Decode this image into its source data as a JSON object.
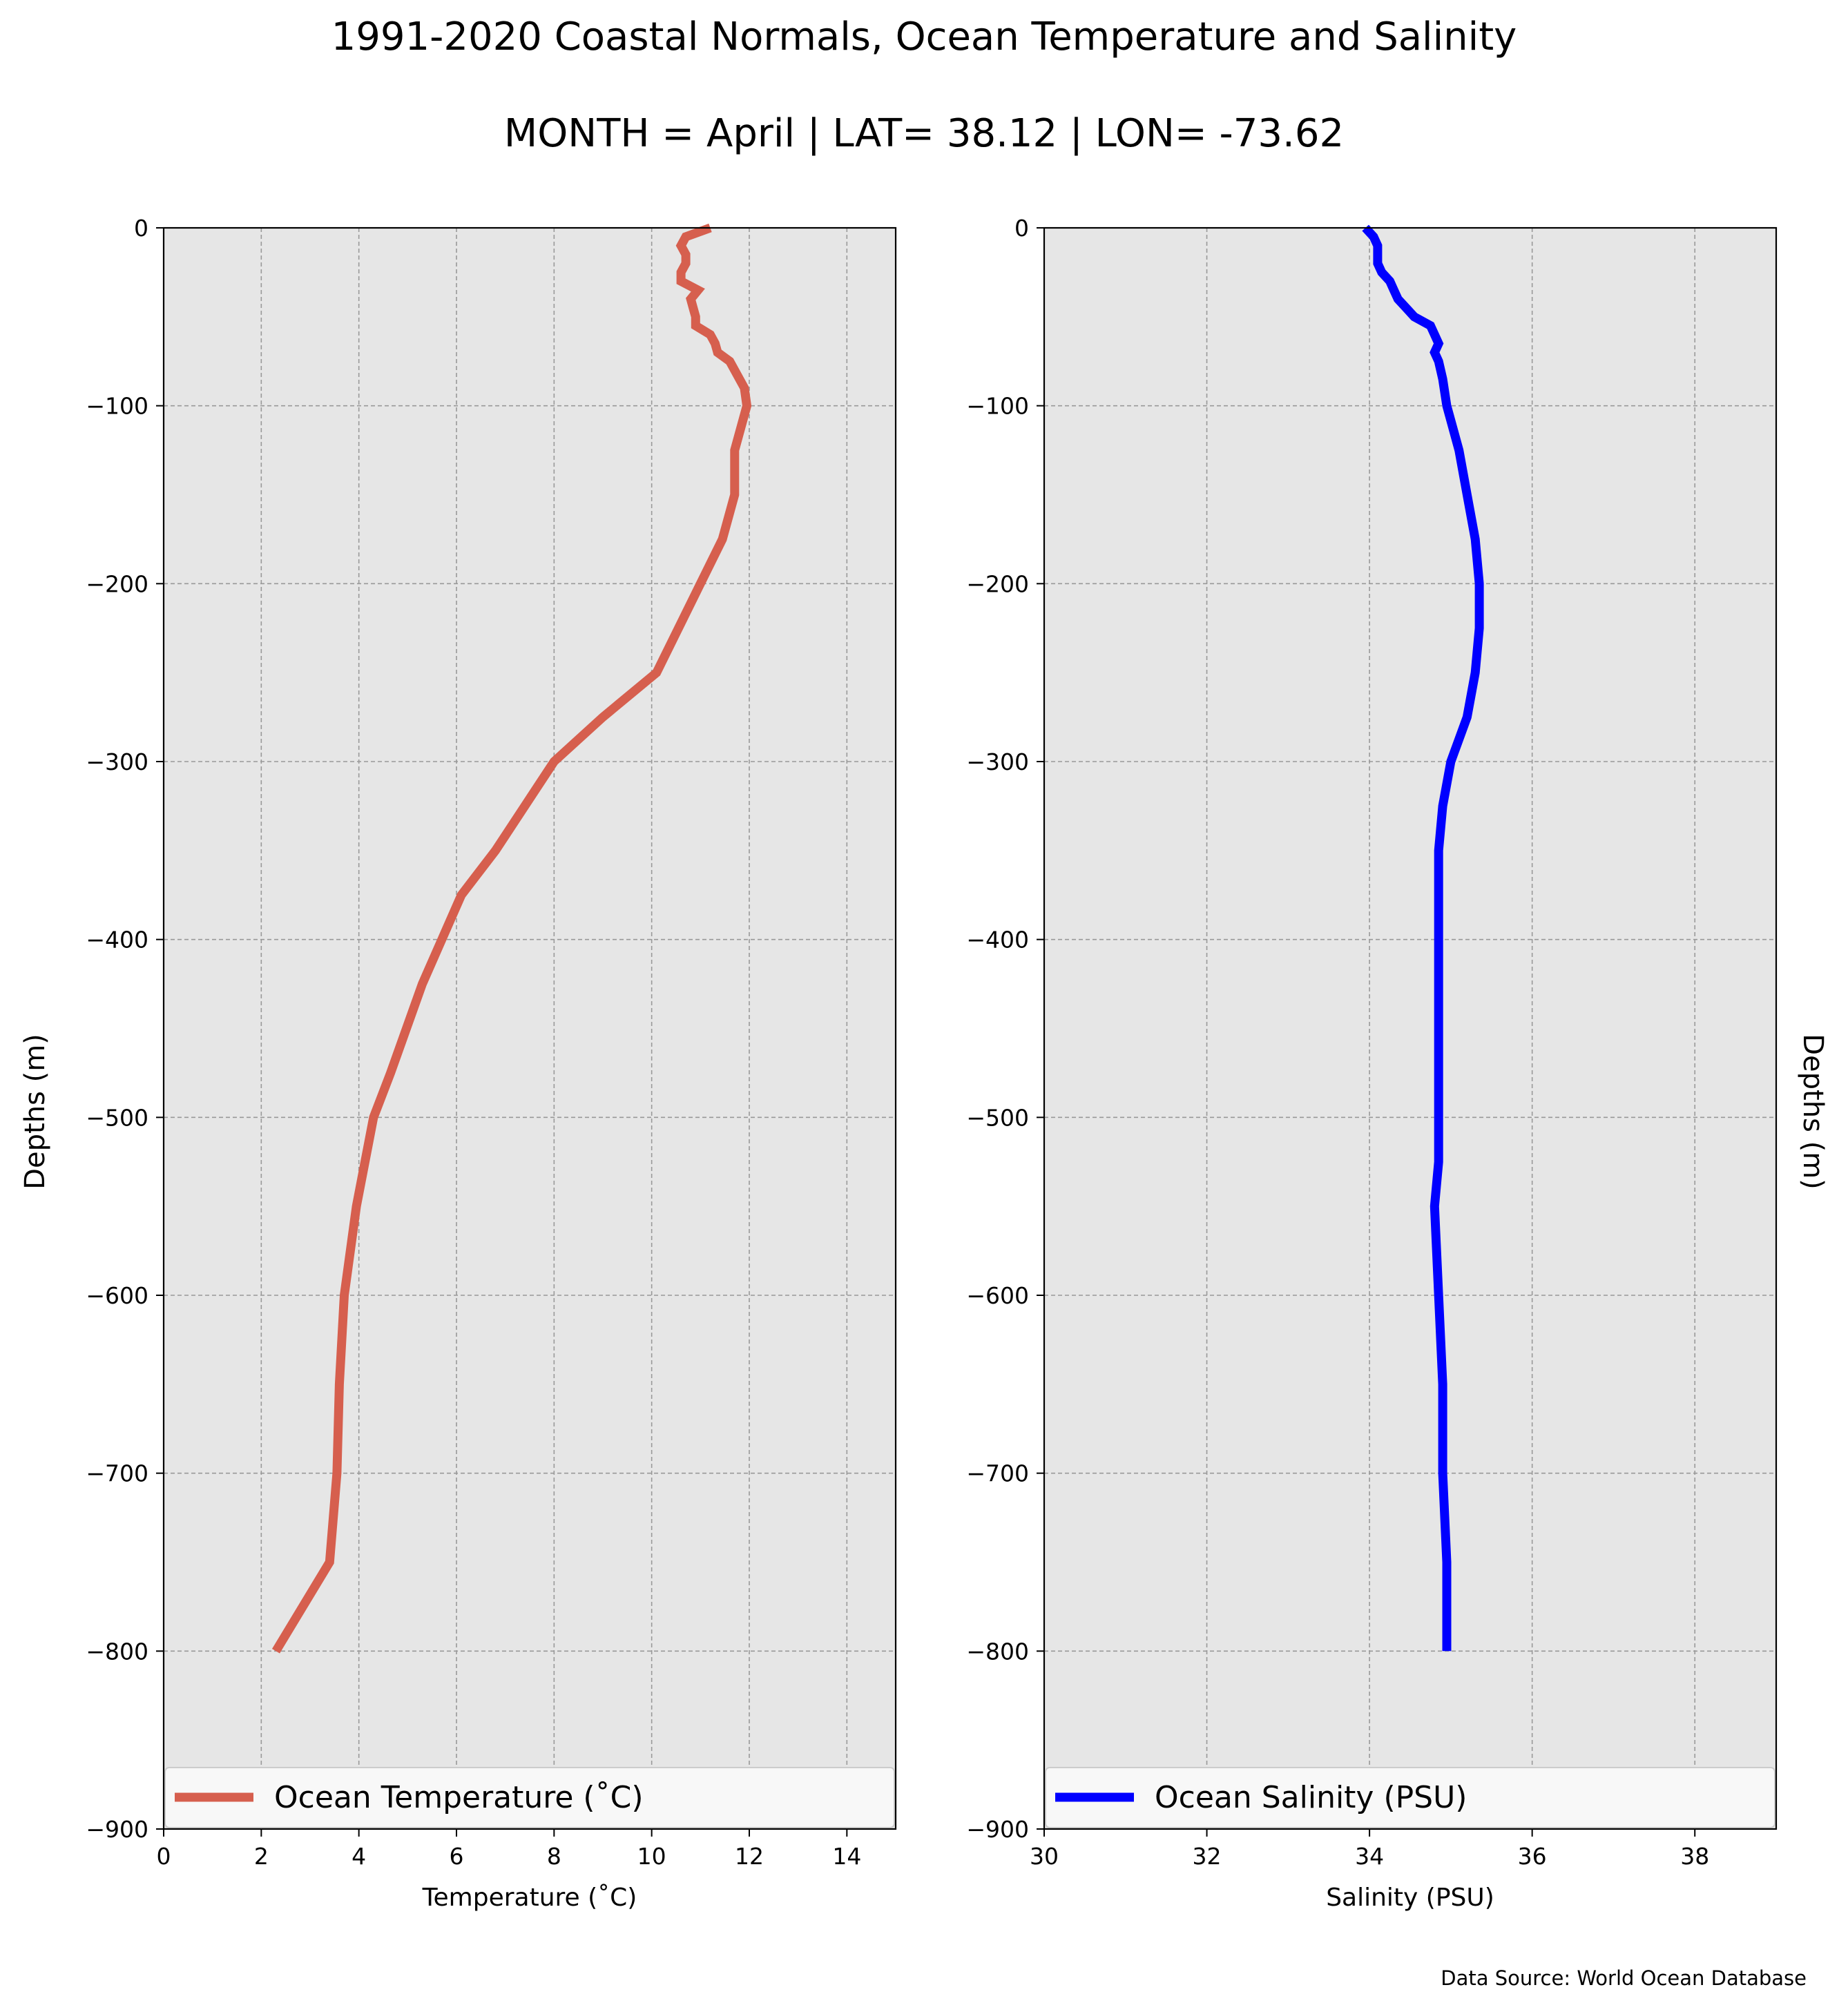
{
  "figure": {
    "title": "1991-2020 Coastal Normals, Ocean Temperature and Salinity",
    "subtitle": "MONTH = April | LAT= 38.12 | LON= -73.62",
    "source": "Data Source: World Ocean Database",
    "colors": {
      "panel_bg": "#e6e6e6",
      "grid": "#999999"
    }
  },
  "chart_data": [
    {
      "type": "line",
      "xlabel": "Temperature ($^\\circ$C)",
      "xlabel_display": "Temperature (˚C)",
      "ylabel": "Depths (m)",
      "xlim": [
        0,
        15
      ],
      "ylim": [
        -900,
        0
      ],
      "xticks": [
        0,
        2,
        4,
        6,
        8,
        10,
        12,
        14
      ],
      "yticks": [
        0,
        -100,
        -200,
        -300,
        -400,
        -500,
        -600,
        -700,
        -800,
        -900
      ],
      "grid": true,
      "legend_position": "lower-left (full width)",
      "series": [
        {
          "name": "Ocean Temperature (˚C)",
          "color": "#d65f4e",
          "x": [
            11.2,
            10.7,
            10.6,
            10.7,
            10.7,
            10.6,
            10.6,
            10.95,
            10.8,
            10.85,
            10.9,
            10.9,
            11.2,
            11.3,
            11.35,
            11.6,
            11.9,
            11.95,
            11.7,
            11.7,
            11.7,
            11.45,
            11.0,
            10.1,
            9.0,
            8.0,
            7.4,
            6.8,
            6.1,
            5.3,
            4.65,
            4.3,
            3.95,
            3.7,
            3.6,
            3.55,
            3.55,
            3.4,
            2.3
          ],
          "y": [
            0,
            -5,
            -10,
            -15,
            -20,
            -25,
            -30,
            -35,
            -40,
            -45,
            -50,
            -55,
            -60,
            -65,
            -70,
            -75,
            -90,
            -100,
            -125,
            -150,
            -150,
            -175,
            -200,
            -250,
            -275,
            -300,
            -325,
            -350,
            -375,
            -425,
            -475,
            -500,
            -550,
            -600,
            -650,
            -700,
            -700,
            -750,
            -800
          ]
        }
      ]
    },
    {
      "type": "line",
      "xlabel": "Salinity (PSU)",
      "ylabel": "Depths (m)",
      "xlim": [
        30,
        39
      ],
      "ylim": [
        -900,
        0
      ],
      "xticks": [
        30,
        32,
        34,
        36,
        38
      ],
      "yticks": [
        0,
        -100,
        -200,
        -300,
        -400,
        -500,
        -600,
        -700,
        -800,
        -900
      ],
      "grid": true,
      "legend_position": "lower-left (full width)",
      "series": [
        {
          "name": "Ocean Salinity (PSU)",
          "color": "#0000ff",
          "x": [
            33.95,
            34.05,
            34.1,
            34.1,
            34.1,
            34.15,
            34.25,
            34.3,
            34.35,
            34.45,
            34.55,
            34.75,
            34.8,
            34.85,
            34.8,
            34.85,
            34.9,
            34.95,
            35.1,
            35.2,
            35.3,
            35.35,
            35.35,
            35.3,
            35.2,
            35.0,
            34.9,
            34.85,
            34.85,
            34.85,
            34.85,
            34.85,
            34.85,
            34.85,
            34.8,
            34.85,
            34.9,
            34.9,
            34.95,
            34.95
          ],
          "y": [
            0,
            -5,
            -10,
            -15,
            -20,
            -25,
            -30,
            -35,
            -40,
            -45,
            -50,
            -55,
            -60,
            -65,
            -70,
            -75,
            -85,
            -100,
            -125,
            -150,
            -175,
            -200,
            -225,
            -250,
            -275,
            -300,
            -325,
            -350,
            -375,
            -425,
            -450,
            -475,
            -500,
            -525,
            -550,
            -600,
            -650,
            -700,
            -750,
            -800
          ]
        }
      ]
    }
  ]
}
